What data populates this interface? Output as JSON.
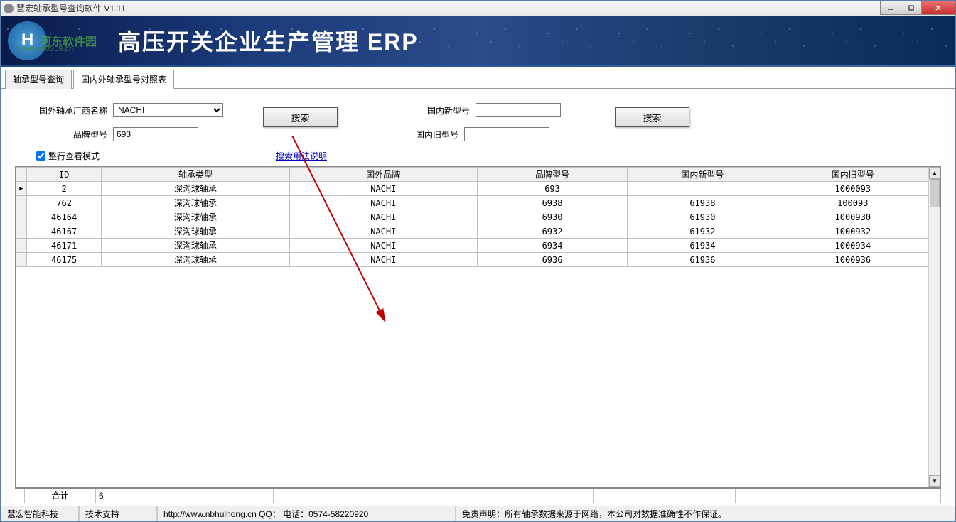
{
  "window": {
    "title": "慧宏轴承型号查询软件 V1.11"
  },
  "banner": {
    "title": "高压开关企业生产管理 ERP",
    "watermark": "www.pc0359.cn",
    "watermark2": "河东软件园"
  },
  "tabs": {
    "tab1": "轴承型号查询",
    "tab2": "国内外轴承型号对照表"
  },
  "search": {
    "label_foreign_brand": "国外轴承厂商名称",
    "foreign_brand_value": "NACHI",
    "label_brand_model": "品牌型号",
    "brand_model_value": "693",
    "button_search": "搜索",
    "label_domestic_new": "国内新型号",
    "domestic_new_value": "",
    "label_domestic_old": "国内旧型号",
    "domestic_old_value": "",
    "button_search2": "搜索",
    "checkbox_label": "整行查看模式",
    "link_help": "搜索用法说明"
  },
  "table": {
    "headers": {
      "id": "ID",
      "type": "轴承类型",
      "brand": "国外品牌",
      "model": "品牌型号",
      "new": "国内新型号",
      "old": "国内旧型号"
    },
    "rows": [
      {
        "marker": "▶",
        "id": "2",
        "type": "深沟球轴承",
        "brand": "NACHI",
        "model": "693",
        "new": "",
        "old": "1000093"
      },
      {
        "marker": "",
        "id": "762",
        "type": "深沟球轴承",
        "brand": "NACHI",
        "model": "6938",
        "new": "61938",
        "old": "100093"
      },
      {
        "marker": "",
        "id": "46164",
        "type": "深沟球轴承",
        "brand": "NACHI",
        "model": "6930",
        "new": "61930",
        "old": "1000930"
      },
      {
        "marker": "",
        "id": "46167",
        "type": "深沟球轴承",
        "brand": "NACHI",
        "model": "6932",
        "new": "61932",
        "old": "1000932"
      },
      {
        "marker": "",
        "id": "46171",
        "type": "深沟球轴承",
        "brand": "NACHI",
        "model": "6934",
        "new": "61934",
        "old": "1000934"
      },
      {
        "marker": "",
        "id": "46175",
        "type": "深沟球轴承",
        "brand": "NACHI",
        "model": "6936",
        "new": "61936",
        "old": "1000936"
      }
    ],
    "summary_label": "合计",
    "summary_count": "6"
  },
  "statusbar": {
    "company": "慧宏智能科技",
    "support": "技术支持",
    "contact": "http://www.nbhuihong.cn   QQ：   电话：0574-58220920",
    "disclaimer": "免责声明：所有轴承数据来源于网络，本公司对数据准确性不作保证。"
  }
}
